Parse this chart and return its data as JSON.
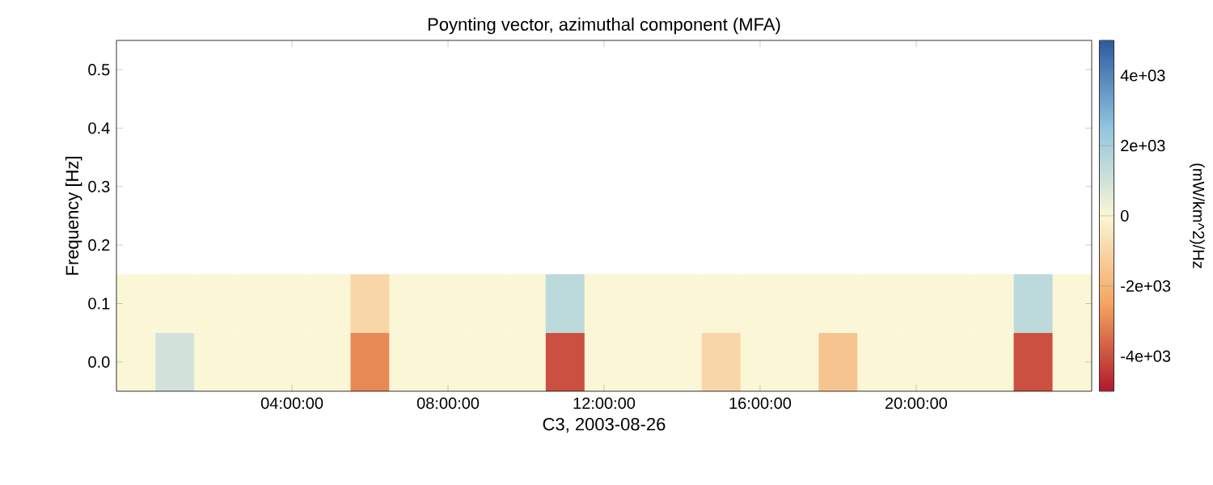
{
  "chart_data": {
    "type": "heatmap",
    "title": "Poynting vector, azimuthal component (MFA)",
    "xlabel": "C3, 2003-08-26",
    "ylabel": "Frequency [Hz]",
    "clabel": "(mW/km^2)/Hz",
    "categories": [
      null,
      null,
      null,
      null,
      "04:00:00",
      null,
      null,
      null,
      "08:00:00",
      null,
      null,
      null,
      "12:00:00",
      null,
      null,
      null,
      "16:00:00",
      null,
      null,
      null,
      "20:00:00",
      null,
      null,
      null,
      null
    ],
    "y_categories": [
      "0.5",
      "0.4",
      "0.3",
      "0.2",
      "0.1",
      "0.0"
    ],
    "cells": [
      [
        null,
        null,
        null,
        null,
        null,
        null,
        null,
        null,
        null,
        null,
        null,
        null,
        null,
        null,
        null,
        null,
        null,
        null,
        null,
        null,
        null,
        null,
        null,
        null,
        null
      ],
      [
        null,
        null,
        null,
        null,
        null,
        null,
        null,
        null,
        null,
        null,
        null,
        null,
        null,
        null,
        null,
        null,
        null,
        null,
        null,
        null,
        null,
        null,
        null,
        null,
        null
      ],
      [
        null,
        null,
        null,
        null,
        null,
        null,
        null,
        null,
        null,
        null,
        null,
        null,
        null,
        null,
        null,
        null,
        null,
        null,
        null,
        null,
        null,
        null,
        null,
        null,
        null
      ],
      [
        null,
        null,
        null,
        null,
        null,
        null,
        null,
        null,
        null,
        null,
        null,
        null,
        null,
        null,
        null,
        null,
        null,
        null,
        null,
        null,
        null,
        null,
        null,
        null,
        null
      ],
      [
        0,
        0,
        0,
        0,
        0,
        0,
        -1000,
        0,
        0,
        0,
        0,
        1500,
        0,
        0,
        0,
        0,
        0,
        0,
        0,
        0,
        0,
        0,
        0,
        1500,
        0
      ],
      [
        0,
        1000,
        0,
        0,
        0,
        0,
        -3000,
        0,
        0,
        0,
        0,
        -4000,
        0,
        0,
        0,
        -1000,
        0,
        0,
        -1500,
        0,
        0,
        0,
        0,
        -4000,
        0
      ]
    ],
    "clim": [
      -5000,
      5000
    ],
    "cticks": [
      {
        "value": -4000,
        "label": "-4e+03"
      },
      {
        "value": -2000,
        "label": "-2e+03"
      },
      0,
      {
        "value": 2000,
        "label": "2e+03"
      },
      {
        "value": 4000,
        "label": "4e+03"
      }
    ]
  }
}
